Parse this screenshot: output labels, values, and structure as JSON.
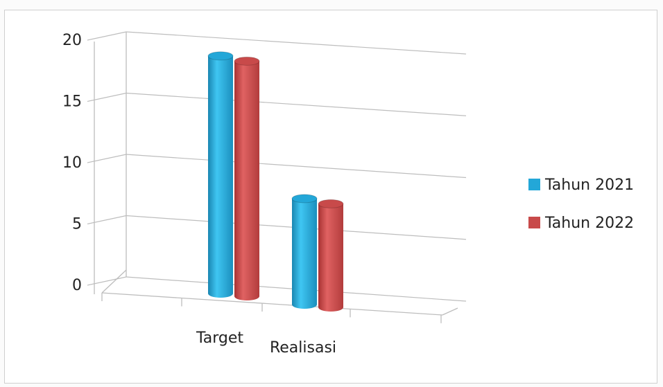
{
  "chart_data": {
    "type": "bar",
    "style": "3d-cylinder",
    "categories": [
      "Target",
      "Realisasi"
    ],
    "series": [
      {
        "name": "Tahun 2021",
        "values": [
          19.5,
          8.7
        ],
        "color": "#23a7d8"
      },
      {
        "name": "Tahun 2022",
        "values": [
          19.3,
          8.5
        ],
        "color": "#c84a4a"
      }
    ],
    "ylim": [
      0,
      20
    ],
    "yticks": [
      0,
      5,
      10,
      15,
      20
    ],
    "grid": true,
    "legend_position": "right"
  }
}
